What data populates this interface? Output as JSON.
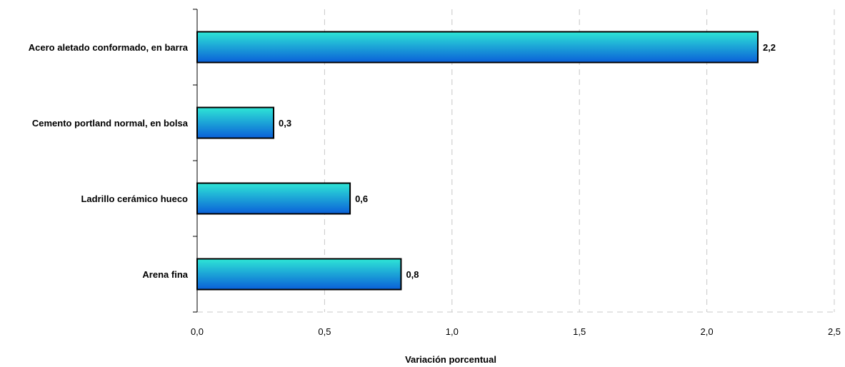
{
  "chart_data": {
    "type": "bar",
    "orientation": "horizontal",
    "title": "",
    "xlabel": "Variación porcentual",
    "ylabel": "",
    "categories": [
      "Acero aletado conformado, en barra",
      "Cemento portland normal, en bolsa",
      "Ladrillo cerámico hueco",
      "Arena fina"
    ],
    "values": [
      2.2,
      0.3,
      0.6,
      0.8
    ],
    "value_labels": [
      "2,2",
      "0,3",
      "0,6",
      "0,8"
    ],
    "xlim": [
      0,
      2.5
    ],
    "x_ticks": [
      0,
      0.5,
      1,
      1.5,
      2,
      2.5
    ],
    "x_tick_labels": [
      "0,0",
      "0,5",
      "1,0",
      "1,5",
      "2,0",
      "2,5"
    ],
    "grid": "vertical dashed",
    "legend": "none",
    "colors": {
      "bar_top": "#2ee6d6",
      "bar_bottom": "#0a5fd8",
      "bar_border": "#000000",
      "grid": "#c8c8c8"
    }
  }
}
